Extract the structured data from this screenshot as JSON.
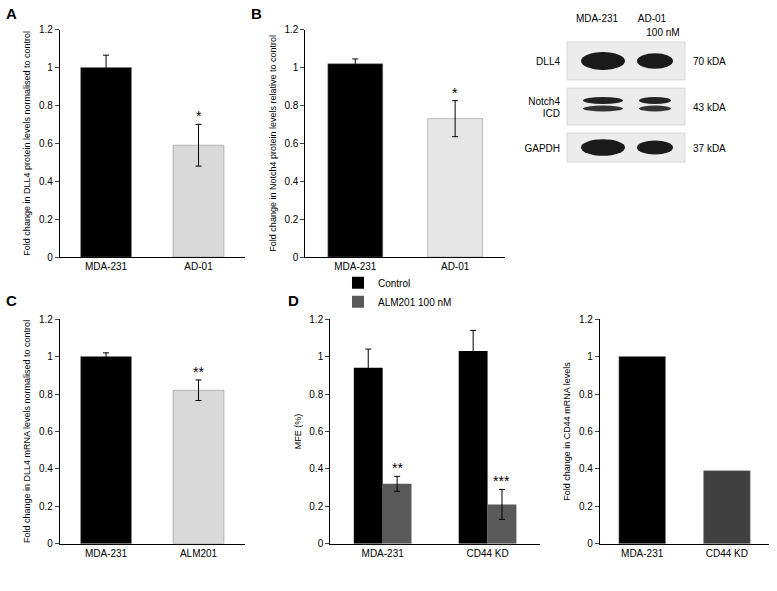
{
  "chart_data": [
    {
      "panel": "A",
      "type": "bar",
      "categories": [
        "MDA-231",
        "AD-01"
      ],
      "values": [
        1.0,
        0.59
      ],
      "errors": [
        0.065,
        0.11
      ],
      "colors": [
        "#000000",
        "#d9d9d9"
      ],
      "ylabel": "Fold change in DLL4 protein levels normalised to control",
      "ylim": [
        0,
        1.2
      ],
      "yticks": [
        0,
        0.2,
        0.4,
        0.6,
        0.8,
        1,
        1.2
      ],
      "annotations": [
        {
          "text": "*",
          "category": "AD-01"
        }
      ]
    },
    {
      "panel": "B",
      "type": "bar",
      "categories": [
        "MDA-231",
        "AD-01"
      ],
      "values": [
        1.02,
        0.73
      ],
      "errors": [
        0.025,
        0.095
      ],
      "colors": [
        "#000000",
        "#e6e6e6"
      ],
      "ylabel": "Fold change in Notch4 protein levels relative to control",
      "ylim": [
        0,
        1.2
      ],
      "yticks": [
        0,
        0.2,
        0.4,
        0.6,
        0.8,
        1,
        1.2
      ],
      "annotations": [
        {
          "text": "*",
          "category": "AD-01"
        }
      ]
    },
    {
      "panel": "C",
      "type": "bar",
      "categories": [
        "MDA-231",
        "ALM201"
      ],
      "values": [
        1.0,
        0.82
      ],
      "errors": [
        0.02,
        0.055
      ],
      "colors": [
        "#000000",
        "#d9d9d9"
      ],
      "ylabel": "Fold change in DLL4 mRNA levels normalised to control",
      "ylim": [
        0,
        1.2
      ],
      "yticks": [
        0,
        0.2,
        0.4,
        0.6,
        0.8,
        1,
        1.2
      ],
      "annotations": [
        {
          "text": "**",
          "category": "ALM201"
        }
      ]
    },
    {
      "panel": "D",
      "type": "bar",
      "categories": [
        "MDA-231",
        "CD44 KD"
      ],
      "series": [
        {
          "name": "Control",
          "color": "#000000",
          "values": [
            0.94,
            1.03
          ],
          "errors": [
            0.1,
            0.11
          ]
        },
        {
          "name": "ALM201 100 nM",
          "color": "#595959",
          "values": [
            0.32,
            0.21
          ],
          "errors": [
            0.04,
            0.08
          ]
        }
      ],
      "legend": "top left",
      "ylabel": "MFE (%)",
      "ylim": [
        0,
        1.2
      ],
      "yticks": [
        0,
        0.2,
        0.4,
        0.6,
        0.8,
        1,
        1.2
      ],
      "annotations": [
        {
          "text": "**",
          "category": "MDA-231",
          "series": "ALM201 100 nM"
        },
        {
          "text": "***",
          "category": "CD44 KD",
          "series": "ALM201 100 nM"
        }
      ]
    },
    {
      "type": "bar",
      "categories": [
        "MDA-231",
        "CD44 KD"
      ],
      "values": [
        1.0,
        0.39
      ],
      "colors": [
        "#000000",
        "#404040"
      ],
      "ylabel": "Fold change in CD44 mRNA levels",
      "ylim": [
        0,
        1.2
      ],
      "yticks": [
        0,
        0.2,
        0.4,
        0.6,
        0.8,
        1,
        1.2
      ]
    }
  ],
  "blot": {
    "lanes": [
      "MDA-231",
      "AD-01"
    ],
    "treatment": "100 nM",
    "rows": [
      {
        "protein": "DLL4",
        "size": "70 kDA"
      },
      {
        "protein": "Notch4 ICD",
        "size": "43 kDA"
      },
      {
        "protein": "GAPDH",
        "size": "37 kDA"
      }
    ]
  }
}
